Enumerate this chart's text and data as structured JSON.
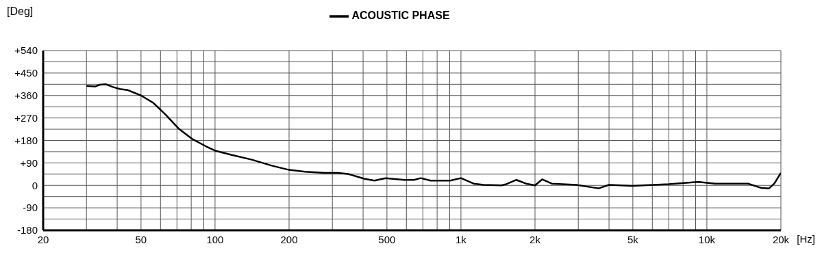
{
  "chart_data": {
    "type": "line",
    "ylabel": "[Deg]",
    "xlabel": "[Hz]",
    "log": "x",
    "grid": true,
    "legend": "top",
    "marker": "none",
    "line_style": "solid",
    "xlim": [
      20,
      20000
    ],
    "xticks": [
      20,
      {
        "value": 30,
        "label": null
      },
      {
        "value": 40,
        "label": null
      },
      50,
      {
        "value": 60,
        "label": null
      },
      {
        "value": 70,
        "label": null
      },
      {
        "value": 80,
        "label": null
      },
      {
        "value": 90,
        "label": null
      },
      100,
      200,
      {
        "value": 300,
        "label": null
      },
      {
        "value": 400,
        "label": null
      },
      500,
      {
        "value": 600,
        "label": null
      },
      {
        "value": 700,
        "label": null
      },
      {
        "value": 800,
        "label": null
      },
      {
        "value": 900,
        "label": null
      },
      {
        "value": 1000,
        "label": "1k"
      },
      {
        "value": 2000,
        "label": "2k"
      },
      {
        "value": 3000,
        "label": null
      },
      {
        "value": 4000,
        "label": null
      },
      {
        "value": 5000,
        "label": "5k"
      },
      {
        "value": 6000,
        "label": null
      },
      {
        "value": 7000,
        "label": null
      },
      {
        "value": 8000,
        "label": null
      },
      {
        "value": 9000,
        "label": null
      },
      {
        "value": 10000,
        "label": "10k"
      },
      {
        "value": 20000,
        "label": "20k"
      }
    ],
    "ylim": [
      -180,
      540
    ],
    "yticks": [
      -180,
      {
        "value": -135,
        "label": null
      },
      -90,
      {
        "value": -45,
        "label": null
      },
      0,
      {
        "value": 45,
        "label": null
      },
      {
        "value": 90,
        "label": "+90"
      },
      {
        "value": 135,
        "label": null
      },
      {
        "value": 180,
        "label": "+180"
      },
      {
        "value": 225,
        "label": null
      },
      {
        "value": 270,
        "label": "+270"
      },
      {
        "value": 315,
        "label": null
      },
      {
        "value": 360,
        "label": "+360"
      },
      {
        "value": 405,
        "label": null
      },
      {
        "value": 450,
        "label": "+450"
      },
      {
        "value": 495,
        "label": null
      },
      {
        "value": 540,
        "label": "+540"
      }
    ],
    "series": [
      {
        "name": "ACOUSTIC PHASE",
        "color": "#000000",
        "x": [
          30,
          32.5,
          34,
          36,
          38.5,
          41,
          44,
          50,
          56,
          63,
          71,
          81,
          92,
          100,
          117,
          141,
          170,
          200,
          232,
          280,
          315,
          347,
          406,
          445,
          494,
          588,
          645,
          686,
          752,
          905,
          1000,
          1126,
          1235,
          1460,
          1530,
          1680,
          1840,
          2000,
          2140,
          2340,
          2940,
          3630,
          4000,
          4970,
          7000,
          9270,
          10800,
          14700,
          16600,
          17900,
          18800,
          20000
        ],
        "values": [
          398,
          396,
          403,
          405,
          394,
          386,
          382,
          360,
          331,
          283,
          228,
          185,
          156,
          139,
          122,
          103,
          79,
          62,
          55,
          50,
          50,
          46,
          26,
          19,
          29,
          22,
          22,
          29,
          19,
          19,
          29,
          7,
          2,
          0,
          5,
          22,
          7,
          0,
          24,
          7,
          2,
          -12,
          2,
          -2,
          5,
          14,
          7,
          7,
          -10,
          -12,
          7,
          50
        ]
      }
    ]
  }
}
